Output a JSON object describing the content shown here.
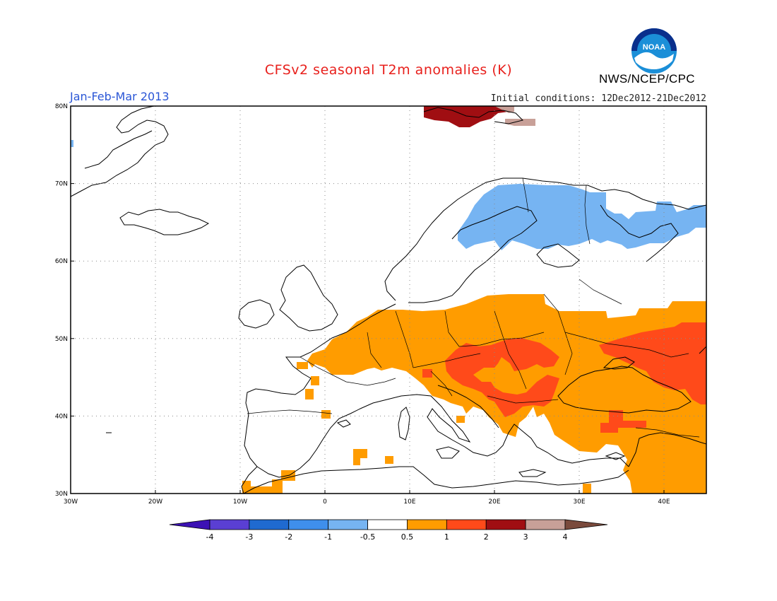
{
  "header": {
    "title": "CFSv2 seasonal T2m anomalies (K)",
    "period": "Jan-Feb-Mar 2013",
    "initial_conditions": "Initial conditions: 12Dec2012-21Dec2012",
    "agency": "NWS/NCEP/CPC",
    "logo_text": "NOAA"
  },
  "map": {
    "projection": "lat-lon",
    "lon_range": [
      -30,
      45
    ],
    "lat_range": [
      30,
      80
    ],
    "lon_ticks": [
      "30W",
      "20W",
      "10W",
      "0",
      "10E",
      "20E",
      "30E",
      "40E"
    ],
    "lat_ticks": [
      "30N",
      "40N",
      "50N",
      "60N",
      "70N",
      "80N"
    ],
    "grid": true
  },
  "legend": {
    "units": "K",
    "labels": [
      "-4",
      "-3",
      "-2",
      "-1",
      "-0.5",
      "0.5",
      "1",
      "2",
      "3",
      "4"
    ],
    "colors": [
      "#3c12b4",
      "#5a3fd3",
      "#1f6ad0",
      "#3f8fec",
      "#76b4f2",
      "#ffffff",
      "#ff9c00",
      "#ff4a1a",
      "#a00e12",
      "#c8a098",
      "#7a4a3c"
    ]
  }
}
